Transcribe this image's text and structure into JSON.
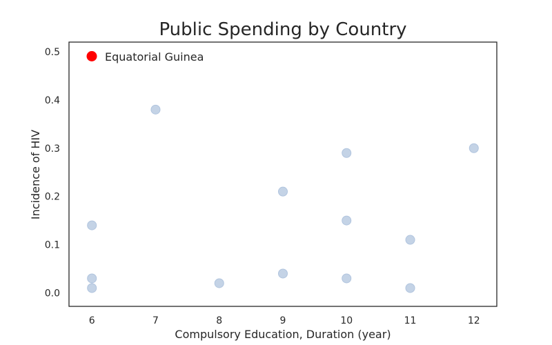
{
  "chart_data": {
    "type": "scatter",
    "title": "Public Spending by Country",
    "xlabel": "Compulsory Education, Duration (year)",
    "ylabel": "Incidence of HIV",
    "xlim": [
      5.64,
      12.36
    ],
    "ylim": [
      -0.028,
      0.52
    ],
    "x_ticks": [
      6,
      7,
      8,
      9,
      10,
      11,
      12
    ],
    "y_ticks": [
      0.0,
      0.1,
      0.2,
      0.3,
      0.4,
      0.5
    ],
    "y_tick_labels": [
      "0.0",
      "0.1",
      "0.2",
      "0.3",
      "0.4",
      "0.5"
    ],
    "grid": false,
    "legend_position": "top-left",
    "legend": [
      {
        "label": "Equatorial Guinea",
        "color": "#ff0000"
      }
    ],
    "series": [
      {
        "color": "#b0c4de",
        "points": [
          {
            "x": 6,
            "y": 0.14
          },
          {
            "x": 6,
            "y": 0.03
          },
          {
            "x": 6,
            "y": 0.01
          },
          {
            "x": 7,
            "y": 0.38
          },
          {
            "x": 8,
            "y": 0.02
          },
          {
            "x": 9,
            "y": 0.21
          },
          {
            "x": 9,
            "y": 0.04
          },
          {
            "x": 10,
            "y": 0.29
          },
          {
            "x": 10,
            "y": 0.15
          },
          {
            "x": 10,
            "y": 0.03
          },
          {
            "x": 11,
            "y": 0.11
          },
          {
            "x": 11,
            "y": 0.01
          },
          {
            "x": 12,
            "y": 0.3
          }
        ]
      }
    ]
  }
}
